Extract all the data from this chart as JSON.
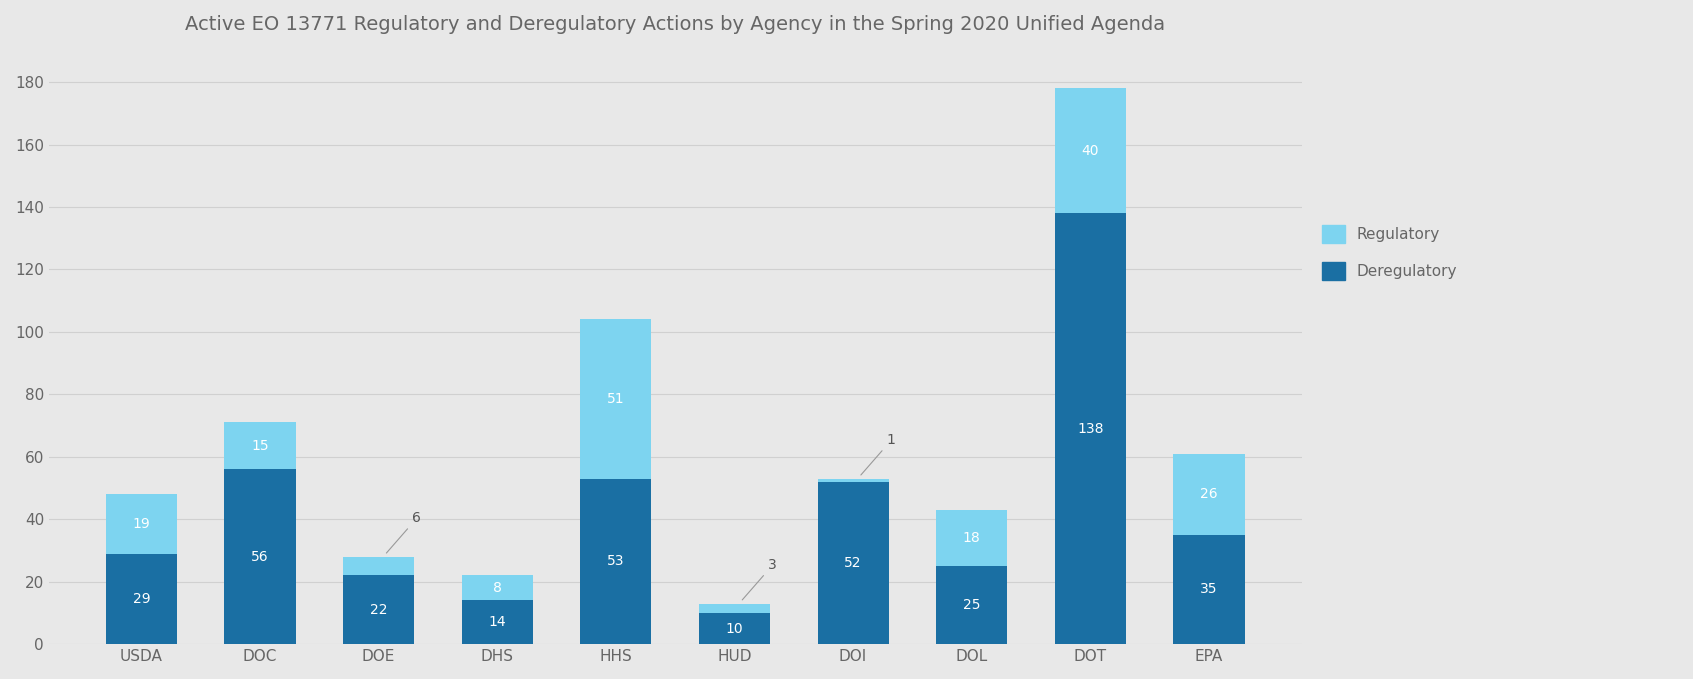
{
  "title": "Active EO 13771 Regulatory and Deregulatory Actions by Agency in the Spring 2020 Unified Agenda",
  "agencies": [
    "USDA",
    "DOC",
    "DOE",
    "DHS",
    "HHS",
    "HUD",
    "DOI",
    "DOL",
    "DOT",
    "EPA"
  ],
  "deregulatory": [
    29,
    56,
    22,
    14,
    53,
    10,
    52,
    25,
    138,
    35
  ],
  "regulatory": [
    19,
    15,
    6,
    8,
    51,
    3,
    1,
    18,
    40,
    26
  ],
  "reg_external_label": [
    false,
    false,
    true,
    false,
    false,
    true,
    true,
    false,
    false,
    false
  ],
  "dereg_color": "#1a6fa3",
  "reg_color": "#7dd4f0",
  "fig_bg_color": "#e8e8e8",
  "plot_bg_color": "#e8e8e8",
  "grid_color": "#d0d0d0",
  "ylim": [
    0,
    190
  ],
  "yticks": [
    0,
    20,
    40,
    60,
    80,
    100,
    120,
    140,
    160,
    180
  ],
  "title_fontsize": 14,
  "label_fontsize": 10,
  "tick_fontsize": 11,
  "legend_fontsize": 11,
  "bar_width": 0.6
}
